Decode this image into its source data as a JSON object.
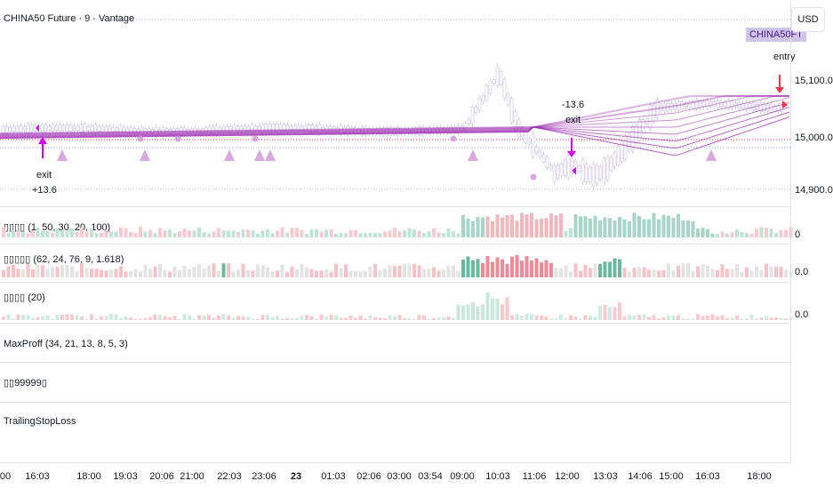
{
  "header": {
    "symbol_title": "CHINA50 Future · 9 · Vantage",
    "currency": "USD",
    "symbol_tag": "CHINA50FT"
  },
  "price_scale": {
    "labels": [
      "15,100.0",
      "15,000.0",
      "14,900.0"
    ]
  },
  "pane_scales": {
    "p1": "0",
    "p2": "0.0",
    "p3": "0.0"
  },
  "annotations": {
    "entry": "entry",
    "exit1": "exit",
    "exit1_value": "+13.6",
    "exit2_value": "-13.6",
    "exit2": "exit"
  },
  "indicators": [
    {
      "label": "▯▯▯▯ (1, 50, 30, 20, 100)"
    },
    {
      "label": "▯▯▯▯▯ (62, 24, 76, 9, 1.618)"
    },
    {
      "label": "▯▯▯▯ (20)"
    },
    {
      "label": "MaxProff (34, 21, 13, 8, 5, 3)"
    },
    {
      "label": "▯▯99999▯"
    },
    {
      "label": "TrailingStopLoss"
    }
  ],
  "time_axis": [
    "00",
    "16:03",
    "18:00",
    "19:03",
    "20:06",
    "21:00",
    "22:03",
    "23:06",
    "23",
    "01:03",
    "02:06",
    "03:00",
    "03:54",
    "09:00",
    "10:03",
    "11:06",
    "12:00",
    "13:03",
    "14:06",
    "15:00",
    "16:03",
    "18:00"
  ],
  "colors": {
    "accent": "#9c27b0",
    "bull": "#26a69a",
    "bear": "#ef5350",
    "entry_arrow": "#f23645"
  }
}
